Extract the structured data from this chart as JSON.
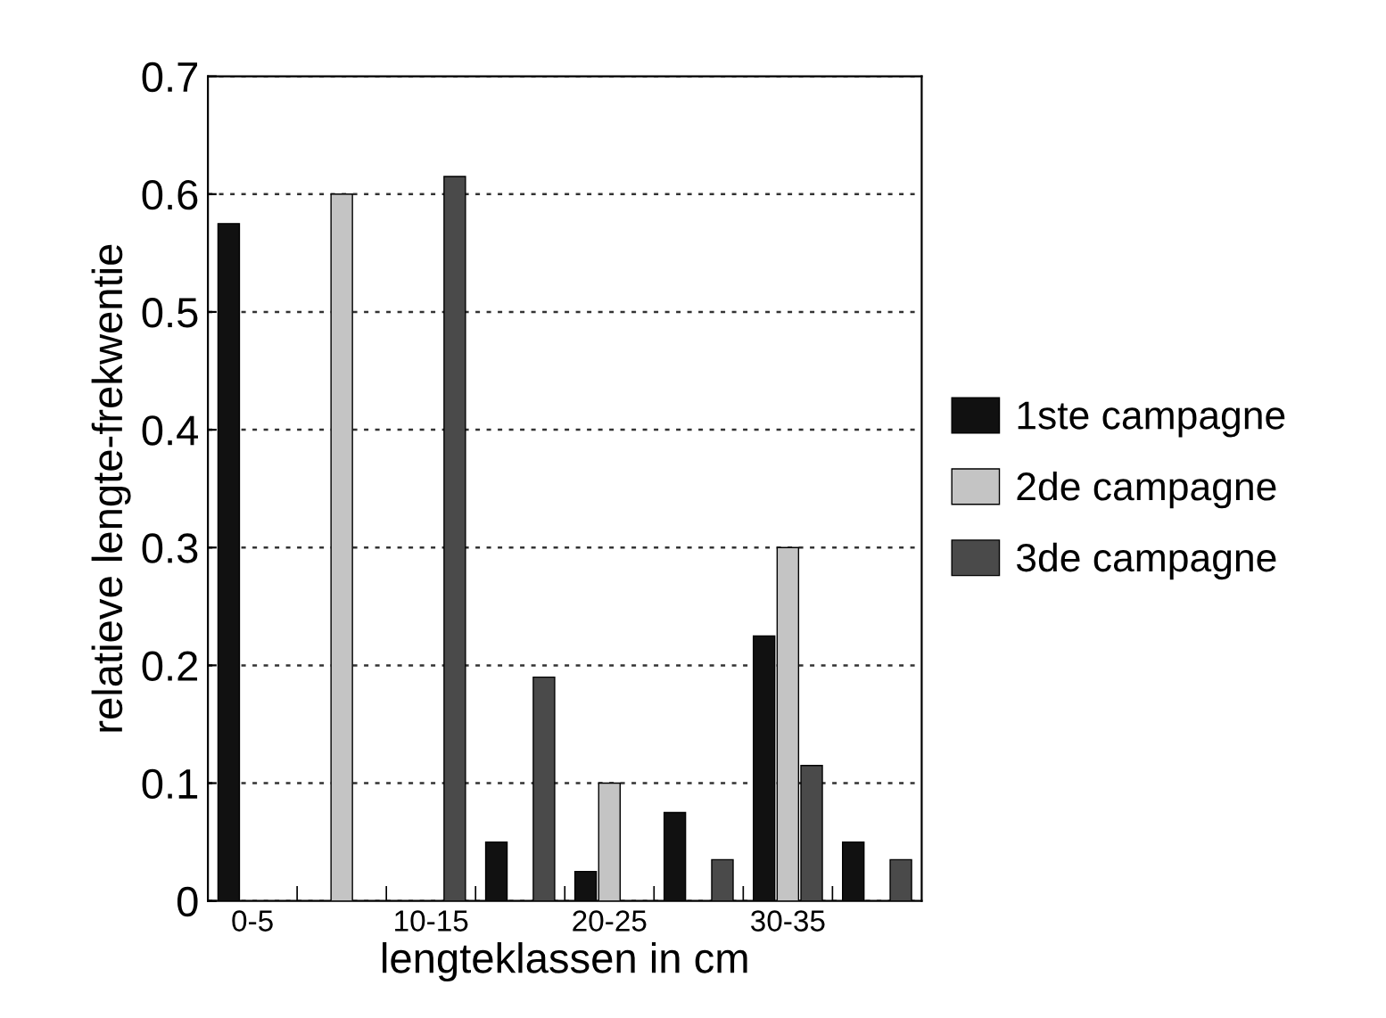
{
  "chart_data": {
    "type": "bar",
    "xlabel": "lengteklassen in cm",
    "ylabel": "relatieve lengte-frekwentie",
    "categories": [
      "0-5",
      null,
      "10-15",
      null,
      "20-25",
      null,
      "30-35",
      null
    ],
    "series": [
      {
        "name": "1ste campagne",
        "color": "#111111",
        "values": [
          0.575,
          null,
          null,
          0.05,
          0.025,
          0.075,
          0.225,
          0.05
        ]
      },
      {
        "name": "2de campagne",
        "color": "#c4c4c4",
        "values": [
          null,
          0.6,
          null,
          null,
          0.1,
          null,
          0.3,
          null
        ]
      },
      {
        "name": "3de campagne",
        "color": "#4a4a4a",
        "values": [
          null,
          null,
          0.615,
          0.19,
          null,
          0.035,
          0.115,
          0.035
        ]
      }
    ],
    "ylim": [
      0,
      0.7
    ],
    "yticks": [
      0,
      0.1,
      0.2,
      0.3,
      0.4,
      0.5,
      0.6,
      0.7
    ],
    "grid": "y",
    "legend": "right"
  }
}
